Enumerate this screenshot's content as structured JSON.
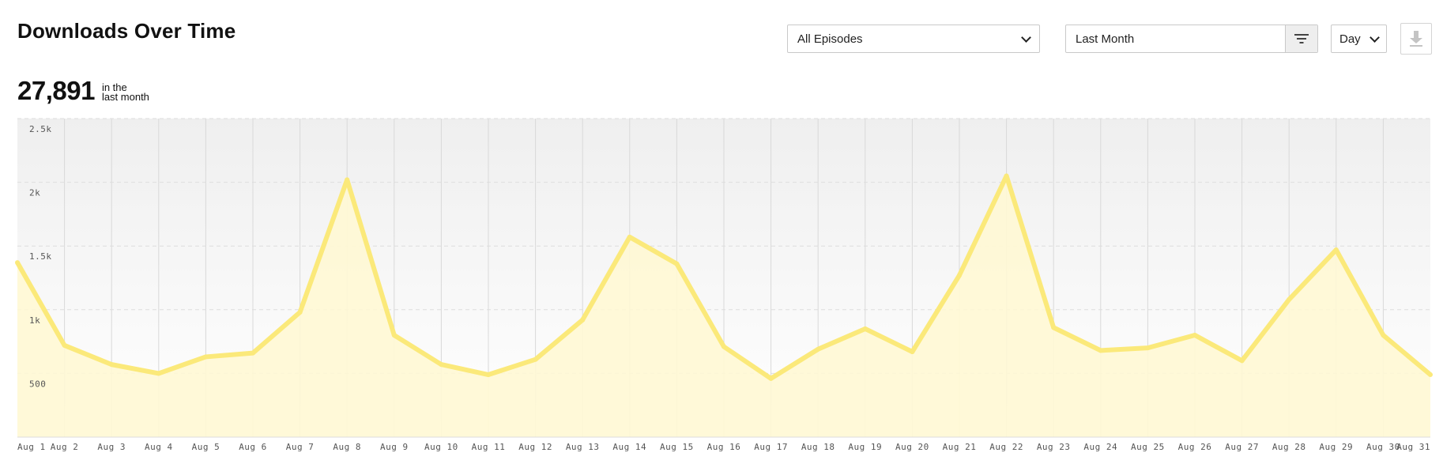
{
  "header": {
    "title": "Downloads Over Time",
    "stat_value": "27,891",
    "stat_caption_line1": "in the",
    "stat_caption_line2": "last month"
  },
  "controls": {
    "episodes_value": "All Episodes",
    "range_value": "Last Month",
    "granularity_value": "Day"
  },
  "icons": {
    "filter": "filter-icon",
    "download": "download-icon",
    "chevron": "chevron-down-icon"
  },
  "colors": {
    "line": "#fbe97a",
    "area": "#fff8d4",
    "background_top": "#f0f0f0"
  },
  "chart_data": {
    "type": "area",
    "title": "",
    "xlabel": "",
    "ylabel": "",
    "ylim": [
      0,
      2500
    ],
    "yticks": [
      500,
      1000,
      1500,
      2000,
      2500
    ],
    "ytick_labels": [
      "500",
      "1k",
      "1.5k",
      "2k",
      "2.5k"
    ],
    "grid": true,
    "categories": [
      "Aug 1",
      "Aug 2",
      "Aug 3",
      "Aug 4",
      "Aug 5",
      "Aug 6",
      "Aug 7",
      "Aug 8",
      "Aug 9",
      "Aug 10",
      "Aug 11",
      "Aug 12",
      "Aug 13",
      "Aug 14",
      "Aug 15",
      "Aug 16",
      "Aug 17",
      "Aug 18",
      "Aug 19",
      "Aug 20",
      "Aug 21",
      "Aug 22",
      "Aug 23",
      "Aug 24",
      "Aug 25",
      "Aug 26",
      "Aug 27",
      "Aug 28",
      "Aug 29",
      "Aug 30",
      "Aug 31"
    ],
    "values": [
      1370,
      720,
      570,
      500,
      630,
      660,
      980,
      2020,
      800,
      570,
      490,
      610,
      920,
      1570,
      1360,
      710,
      460,
      690,
      850,
      670,
      1270,
      2050,
      860,
      680,
      700,
      800,
      600,
      1080,
      1470,
      800,
      490
    ]
  }
}
